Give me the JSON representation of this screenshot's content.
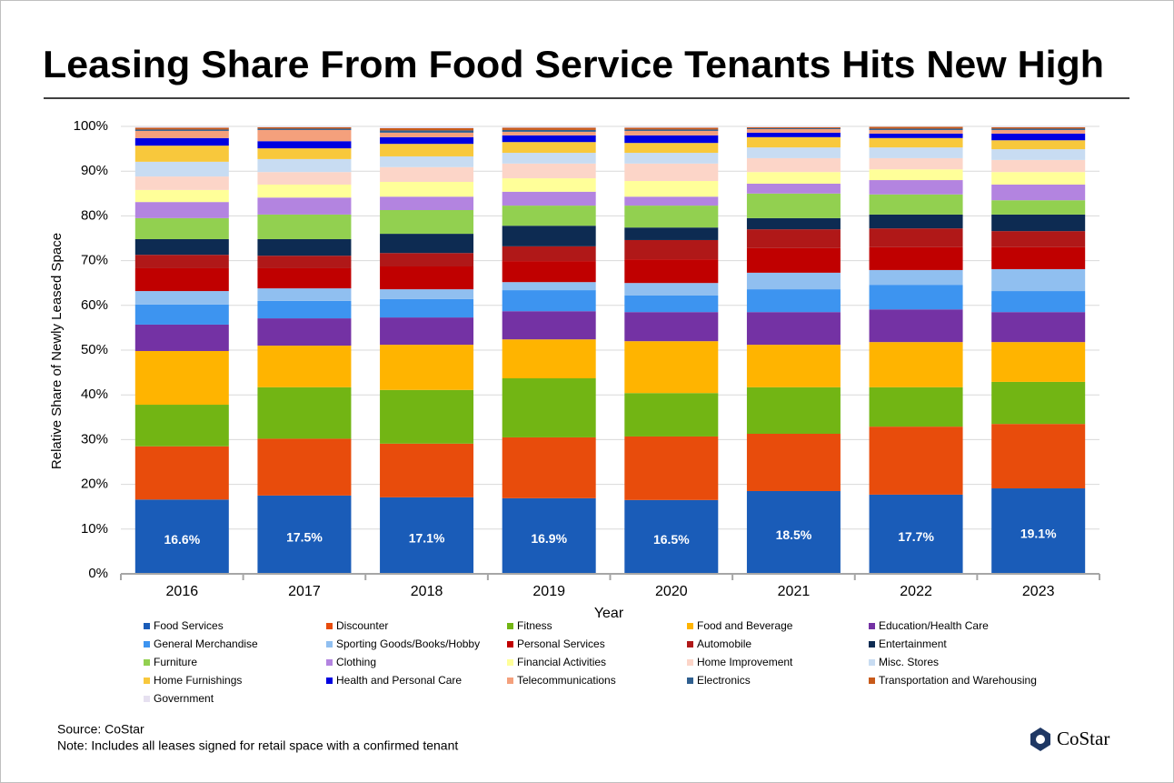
{
  "chart_data": {
    "type": "stacked_bar",
    "title": "Leasing Share From Food Service Tenants Hits New High",
    "ylabel": "Relative Share of Newly Leased Space",
    "xlabel": "Year",
    "source": "Source: CoStar",
    "note": "Note: Includes all leases signed for retail space with a confirmed tenant",
    "logo": "CoStar",
    "categories": [
      "2016",
      "2017",
      "2018",
      "2019",
      "2020",
      "2021",
      "2022",
      "2023"
    ],
    "ylim": [
      0,
      100
    ],
    "yticks": [
      {
        "value": 0,
        "label": "0%"
      },
      {
        "value": 10,
        "label": "10%"
      },
      {
        "value": 20,
        "label": "20%"
      },
      {
        "value": 30,
        "label": "30%"
      },
      {
        "value": 40,
        "label": "40%"
      },
      {
        "value": 50,
        "label": "50%"
      },
      {
        "value": 60,
        "label": "60%"
      },
      {
        "value": 70,
        "label": "70%"
      },
      {
        "value": 80,
        "label": "80%"
      },
      {
        "value": 90,
        "label": "90%"
      },
      {
        "value": 100,
        "label": "100%"
      }
    ],
    "grid": true,
    "series": [
      {
        "name": "Food Services",
        "color": "#1a5cb8",
        "values": [
          16.6,
          17.5,
          17.1,
          16.9,
          16.5,
          18.5,
          17.7,
          19.1
        ],
        "value_labels": [
          "16.6%",
          "17.5%",
          "17.1%",
          "16.9%",
          "16.5%",
          "18.5%",
          "17.7%",
          "19.1%"
        ]
      },
      {
        "name": "Discounter",
        "color": "#e84c0c",
        "values": [
          11.9,
          12.7,
          12.0,
          13.6,
          14.2,
          12.8,
          15.2,
          14.4
        ]
      },
      {
        "name": "Fitness",
        "color": "#72b514",
        "values": [
          9.3,
          11.5,
          12.0,
          13.2,
          9.7,
          10.4,
          8.8,
          9.4
        ]
      },
      {
        "name": "Food and Beverage",
        "color": "#ffb400",
        "values": [
          12.0,
          9.3,
          10.1,
          8.7,
          11.6,
          9.5,
          10.1,
          8.9
        ]
      },
      {
        "name": "Education/Health Care",
        "color": "#7432a4",
        "values": [
          5.9,
          6.1,
          6.1,
          6.3,
          6.5,
          7.3,
          7.3,
          6.7
        ]
      },
      {
        "name": "General Merchandise",
        "color": "#3d94f0",
        "values": [
          4.5,
          3.9,
          4.1,
          4.7,
          3.7,
          5.1,
          5.5,
          4.7
        ]
      },
      {
        "name": "Sporting Goods/Books/Hobby",
        "color": "#90bff0",
        "values": [
          3.0,
          2.8,
          2.2,
          1.8,
          2.8,
          3.7,
          3.3,
          4.9
        ]
      },
      {
        "name": "Personal Services",
        "color": "#c00000",
        "values": [
          5.1,
          4.5,
          5.1,
          4.7,
          5.3,
          5.5,
          5.1,
          4.9
        ]
      },
      {
        "name": "Automobile",
        "color": "#b01818",
        "values": [
          3.0,
          2.8,
          3.0,
          3.3,
          4.3,
          4.2,
          4.2,
          3.6
        ]
      },
      {
        "name": "Entertainment",
        "color": "#0d2b52",
        "values": [
          3.5,
          3.7,
          4.3,
          4.6,
          2.8,
          2.5,
          3.1,
          3.7
        ]
      },
      {
        "name": "Furniture",
        "color": "#92d050",
        "values": [
          4.7,
          5.5,
          5.3,
          4.5,
          4.9,
          5.5,
          4.5,
          3.2
        ]
      },
      {
        "name": "Clothing",
        "color": "#b384e0",
        "values": [
          3.6,
          3.8,
          3.0,
          3.1,
          2.0,
          2.2,
          3.2,
          3.5
        ]
      },
      {
        "name": "Financial Activities",
        "color": "#ffff99",
        "values": [
          2.7,
          2.9,
          3.3,
          3.0,
          3.5,
          2.6,
          2.4,
          2.8
        ]
      },
      {
        "name": "Home Improvement",
        "color": "#fcd5c8",
        "values": [
          3.0,
          2.8,
          3.3,
          3.3,
          3.9,
          3.1,
          2.5,
          2.7
        ]
      },
      {
        "name": "Misc. Stores",
        "color": "#c8dcf2",
        "values": [
          3.3,
          2.9,
          2.4,
          2.4,
          2.4,
          2.4,
          2.4,
          2.4
        ]
      },
      {
        "name": "Home Furnishings",
        "color": "#f8c83c",
        "values": [
          3.6,
          2.4,
          2.8,
          2.4,
          2.2,
          2.3,
          2.1,
          2.0
        ]
      },
      {
        "name": "Health and Personal Care",
        "color": "#0000e0",
        "values": [
          1.7,
          1.6,
          1.5,
          1.5,
          1.7,
          1.0,
          1.0,
          1.5
        ]
      },
      {
        "name": "Telecommunications",
        "color": "#f4a07c",
        "values": [
          1.6,
          2.5,
          1.0,
          0.8,
          1.0,
          0.8,
          0.8,
          0.8
        ]
      },
      {
        "name": "Electronics",
        "color": "#2f5f8f",
        "values": [
          0.3,
          0.3,
          0.5,
          0.4,
          0.3,
          0.2,
          0.3,
          0.3
        ]
      },
      {
        "name": "Transportation and Warehousing",
        "color": "#c85a1a",
        "values": [
          0.4,
          0.3,
          0.5,
          0.5,
          0.4,
          0.2,
          0.4,
          0.3
        ]
      },
      {
        "name": "Government",
        "color": "#e6e0f0",
        "values": [
          0.3,
          0.2,
          0.4,
          0.3,
          0.3,
          0.2,
          0.1,
          0.2
        ]
      }
    ]
  }
}
